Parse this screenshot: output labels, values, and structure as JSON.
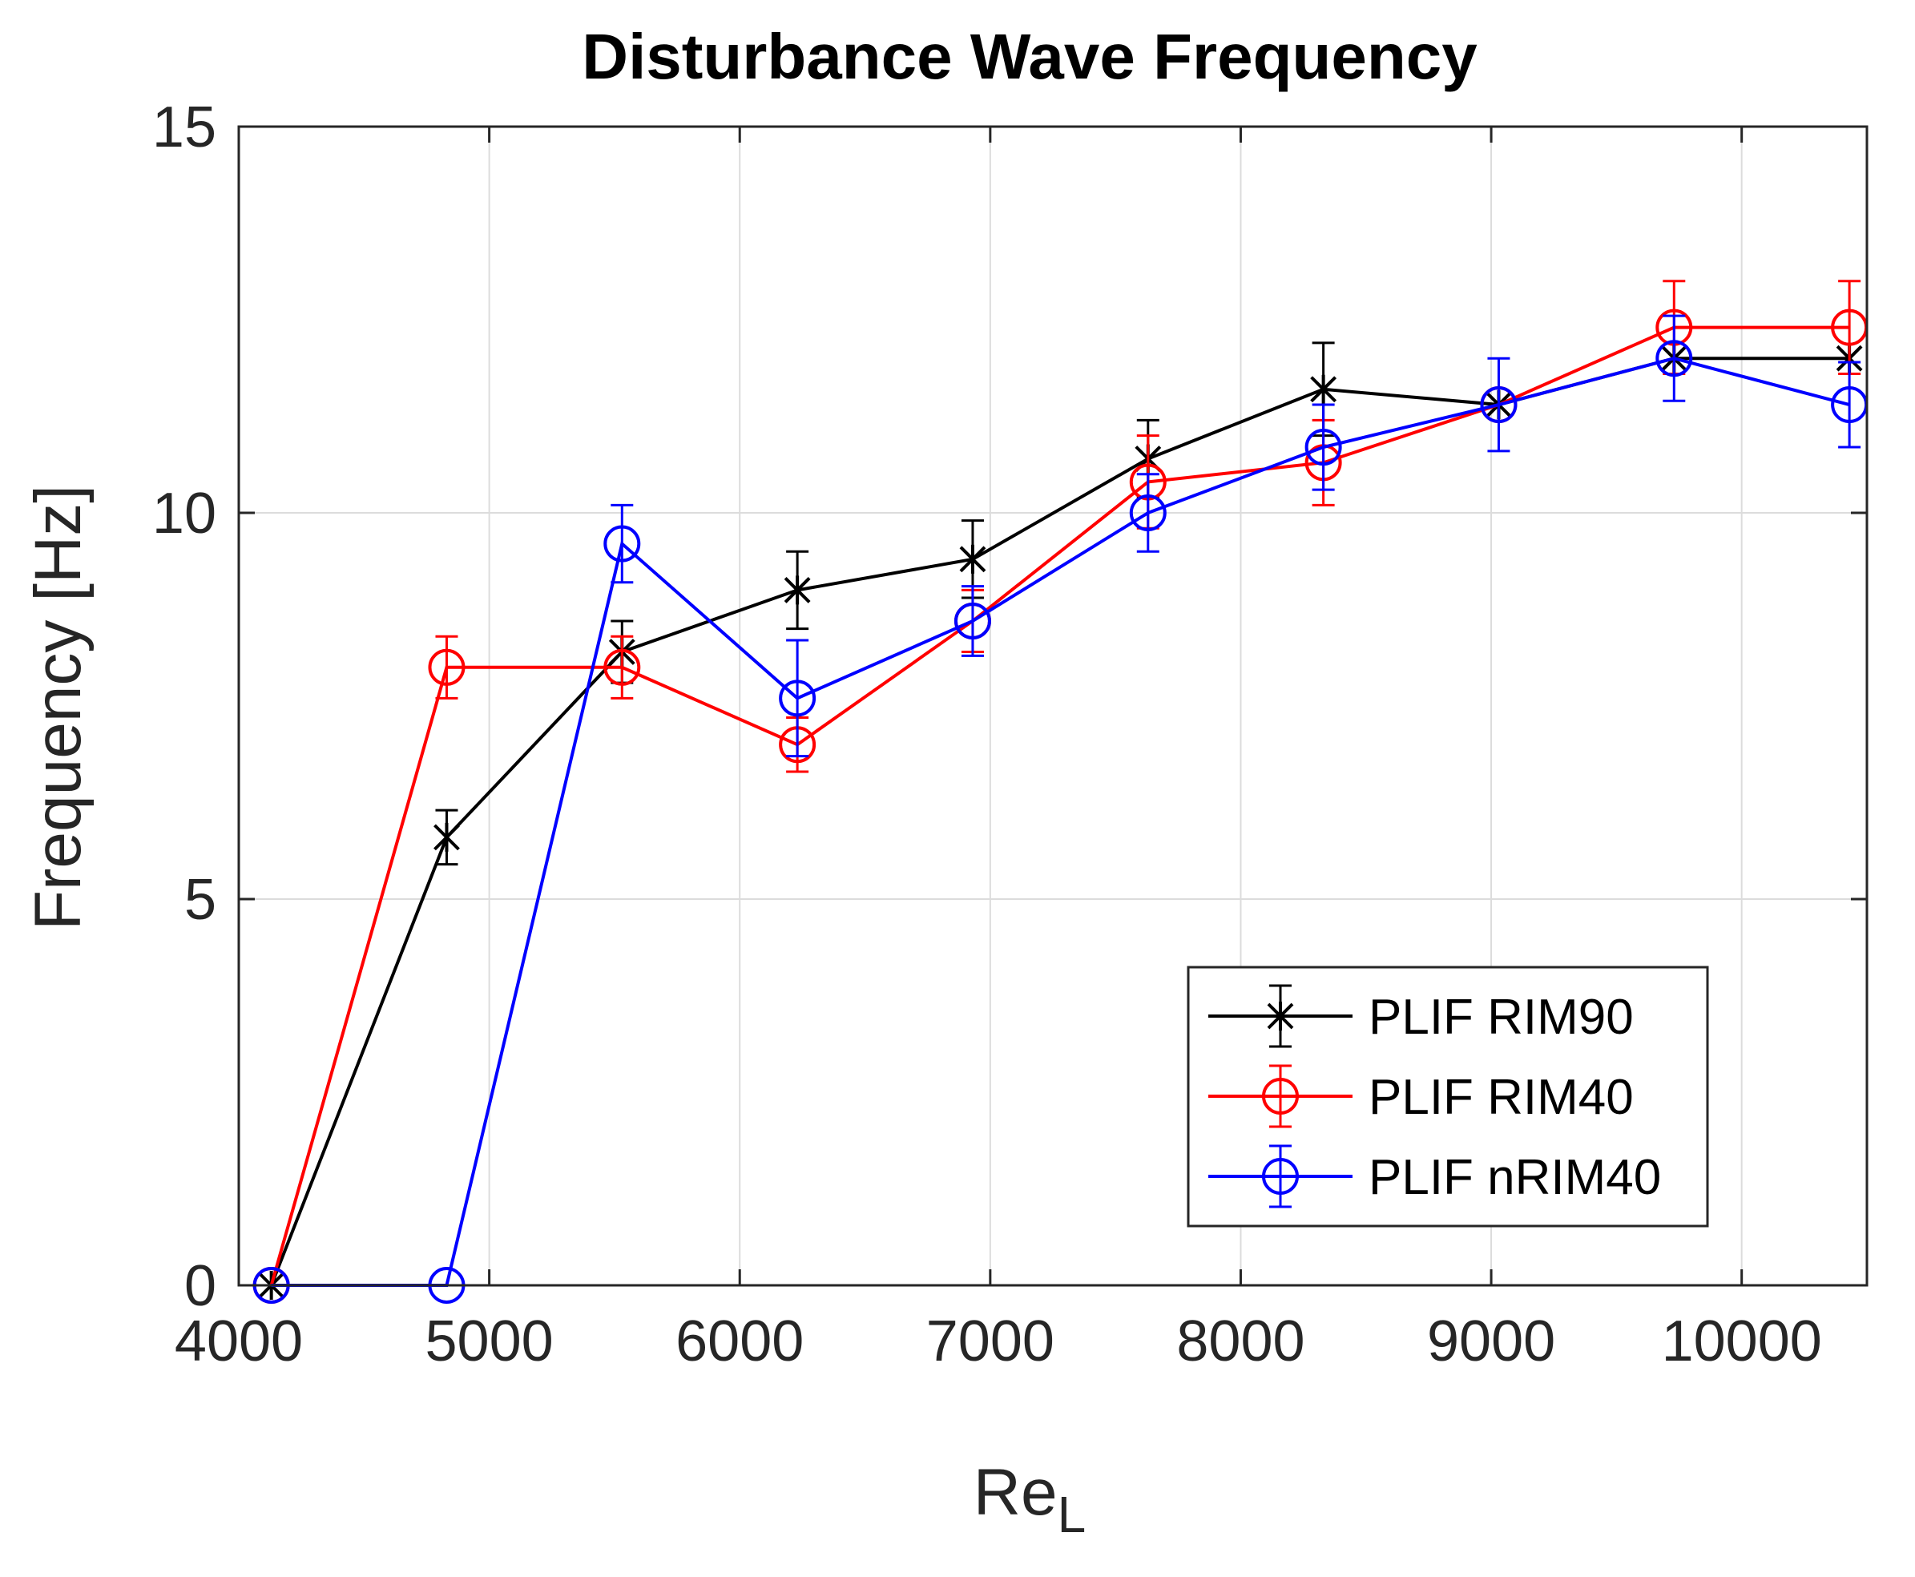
{
  "chart_data": {
    "type": "line",
    "title": "Disturbance Wave Frequency",
    "xlabel": "Re",
    "xlabel_subscript": "L",
    "ylabel": "Frequency [Hz]",
    "xlim": [
      4000,
      10500
    ],
    "ylim": [
      0,
      15
    ],
    "xticks": [
      4000,
      5000,
      6000,
      7000,
      8000,
      9000,
      10000
    ],
    "yticks": [
      0,
      5,
      10,
      15
    ],
    "grid": true,
    "legend_position": "bottom-right",
    "series": [
      {
        "name": "PLIF RIM90",
        "color": "#000000",
        "marker": "star",
        "x": [
          4130,
          4830,
          5530,
          6230,
          6930,
          7630,
          8330,
          9030,
          9730,
          10430
        ],
        "y": [
          0,
          5.8,
          8.2,
          9.0,
          9.4,
          10.7,
          11.6,
          11.4,
          12.0,
          12.0
        ],
        "err": [
          0,
          0.35,
          0.4,
          0.5,
          0.5,
          0.5,
          0.6,
          0.0,
          0.0,
          0.0
        ]
      },
      {
        "name": "PLIF RIM40",
        "color": "#ff0000",
        "marker": "circle",
        "x": [
          4130,
          4830,
          5530,
          6230,
          6930,
          7630,
          8330,
          9030,
          9730,
          10430
        ],
        "y": [
          0,
          8.0,
          8.0,
          7.0,
          8.6,
          10.4,
          10.65,
          11.4,
          12.4,
          12.4
        ],
        "err": [
          0,
          0.4,
          0.4,
          0.35,
          0.4,
          0.6,
          0.55,
          0.0,
          0.6,
          0.6
        ]
      },
      {
        "name": "PLIF nRIM40",
        "color": "#0000ff",
        "marker": "circle",
        "x": [
          4130,
          4830,
          5530,
          6230,
          6930,
          7630,
          8330,
          9030,
          9730,
          10430
        ],
        "y": [
          0,
          0,
          9.6,
          7.6,
          8.6,
          10.0,
          10.85,
          11.4,
          12.0,
          11.4
        ],
        "err": [
          0,
          0,
          0.5,
          0.75,
          0.45,
          0.5,
          0.55,
          0.6,
          0.55,
          0.55
        ]
      }
    ]
  }
}
